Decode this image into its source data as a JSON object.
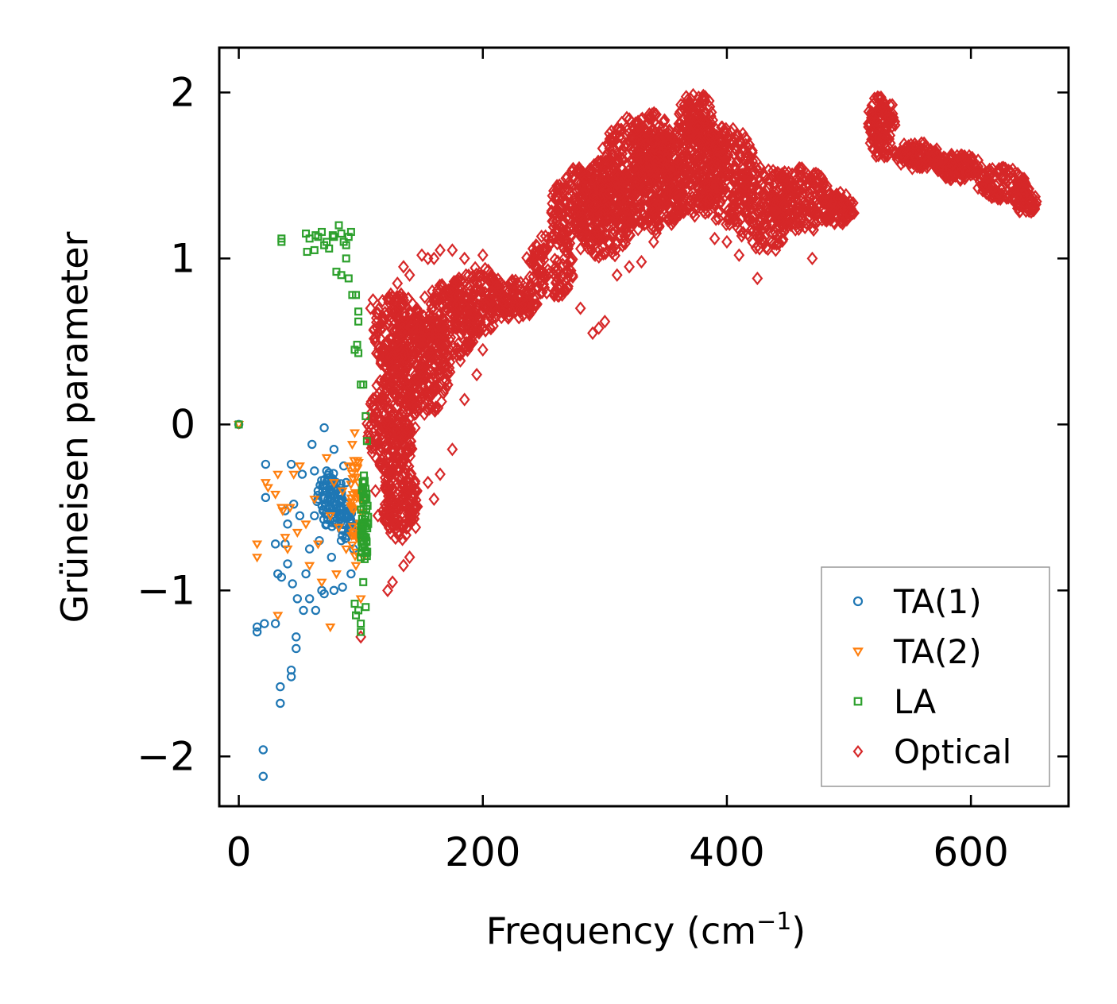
{
  "chart_data": {
    "type": "scatter",
    "title": "",
    "xlabel": "Frequency (cm",
    "xlabel_sup": "−1",
    "xlabel_close": ")",
    "ylabel": "Grüneisen parameter",
    "xlim": [
      -16,
      680
    ],
    "ylim": [
      -2.3,
      2.27
    ],
    "x_ticks": [
      0,
      200,
      400,
      600
    ],
    "x_tick_labels": [
      "0",
      "200",
      "400",
      "600"
    ],
    "y_ticks": [
      -2,
      -1,
      0,
      1,
      2
    ],
    "y_tick_labels": [
      "−2",
      "−1",
      "0",
      "1",
      "2"
    ],
    "grid": false,
    "legend_position": "bottom-right",
    "series": [
      {
        "name": "TA(1)",
        "marker": "circle",
        "color": "#1f77b4",
        "points": [
          [
            0,
            0
          ],
          [
            20,
            -2.12
          ],
          [
            20,
            -1.96
          ],
          [
            30,
            -1.2
          ],
          [
            21,
            -1.2
          ],
          [
            15,
            -1.22
          ],
          [
            15,
            -1.25
          ],
          [
            34,
            -1.58
          ],
          [
            34,
            -1.68
          ],
          [
            43,
            -1.48
          ],
          [
            43,
            -1.52
          ],
          [
            47,
            -1.28
          ],
          [
            47,
            -1.35
          ],
          [
            22,
            -0.24
          ],
          [
            22,
            -0.44
          ],
          [
            30,
            -0.72
          ],
          [
            32,
            -0.9
          ],
          [
            35,
            -0.92
          ],
          [
            40,
            -0.84
          ],
          [
            44,
            -0.96
          ],
          [
            38,
            -0.52
          ],
          [
            40,
            -0.6
          ],
          [
            38,
            -0.72
          ],
          [
            43,
            -0.24
          ],
          [
            45,
            -0.48
          ],
          [
            50,
            -0.55
          ],
          [
            52,
            -0.3
          ],
          [
            55,
            -0.9
          ],
          [
            58,
            -1.05
          ],
          [
            60,
            -0.12
          ],
          [
            62,
            -0.28
          ],
          [
            65,
            -0.4
          ],
          [
            66,
            -0.7
          ],
          [
            68,
            -1.0
          ],
          [
            70,
            -0.02
          ],
          [
            72,
            -0.28
          ],
          [
            75,
            -0.5
          ],
          [
            76,
            -0.8
          ],
          [
            78,
            -0.15
          ],
          [
            80,
            -0.35
          ],
          [
            82,
            -0.55
          ],
          [
            84,
            -0.7
          ],
          [
            86,
            -0.25
          ],
          [
            88,
            -0.48
          ],
          [
            90,
            -0.62
          ],
          [
            92,
            -0.9
          ],
          [
            94,
            -0.75
          ],
          [
            96,
            -0.6
          ],
          [
            48,
            -1.05
          ],
          [
            53,
            -1.12
          ],
          [
            63,
            -1.12
          ],
          [
            70,
            -1.02
          ],
          [
            78,
            -1.0
          ],
          [
            85,
            -0.98
          ],
          [
            58,
            -0.75
          ],
          [
            62,
            -0.55
          ],
          [
            65,
            -0.45
          ],
          [
            72,
            -0.6
          ],
          [
            75,
            -0.4
          ],
          [
            80,
            -0.6
          ],
          [
            84,
            -0.45
          ],
          [
            88,
            -0.35
          ],
          [
            92,
            -0.52
          ]
        ],
        "clusters": [
          [
            75,
            -0.45,
            11,
            0.17,
            70
          ],
          [
            88,
            -0.58,
            5,
            0.12,
            30
          ]
        ]
      },
      {
        "name": "TA(2)",
        "marker": "triangle-down",
        "color": "#ff7f0e",
        "points": [
          [
            0,
            0
          ],
          [
            15,
            -0.72
          ],
          [
            15,
            -0.8
          ],
          [
            22,
            -0.35
          ],
          [
            24,
            -0.38
          ],
          [
            30,
            -0.42
          ],
          [
            32,
            -0.3
          ],
          [
            32,
            -1.15
          ],
          [
            35,
            -0.5
          ],
          [
            36,
            -0.52
          ],
          [
            38,
            -0.68
          ],
          [
            40,
            -0.75
          ],
          [
            42,
            -0.5
          ],
          [
            45,
            -0.3
          ],
          [
            48,
            -0.65
          ],
          [
            50,
            -0.25
          ],
          [
            55,
            -0.6
          ],
          [
            58,
            -0.85
          ],
          [
            62,
            -0.45
          ],
          [
            65,
            -0.72
          ],
          [
            68,
            -0.95
          ],
          [
            72,
            -0.2
          ],
          [
            75,
            -0.55
          ],
          [
            78,
            -0.35
          ],
          [
            80,
            -0.9
          ],
          [
            82,
            -0.62
          ],
          [
            85,
            -0.4
          ],
          [
            88,
            -0.75
          ],
          [
            90,
            -0.25
          ],
          [
            92,
            -0.5
          ],
          [
            94,
            -0.65
          ],
          [
            96,
            -0.85
          ],
          [
            95,
            -0.05
          ],
          [
            93,
            -0.12
          ],
          [
            98,
            -0.35
          ],
          [
            100,
            -0.65
          ],
          [
            102,
            -0.8
          ],
          [
            100,
            -1.05
          ],
          [
            75,
            -1.22
          ]
        ],
        "clusters": [
          [
            96,
            -0.5,
            5,
            0.3,
            40
          ]
        ]
      },
      {
        "name": "LA",
        "marker": "square",
        "color": "#2ca02c",
        "points": [
          [
            0,
            0
          ],
          [
            35,
            1.12
          ],
          [
            35,
            1.1
          ],
          [
            55,
            1.15
          ],
          [
            56,
            1.04
          ],
          [
            58,
            1.12
          ],
          [
            62,
            1.05
          ],
          [
            63,
            1.14
          ],
          [
            65,
            1.13
          ],
          [
            68,
            1.16
          ],
          [
            70,
            1.08
          ],
          [
            72,
            1.1
          ],
          [
            74,
            1.06
          ],
          [
            77,
            1.14
          ],
          [
            78,
            1.13
          ],
          [
            82,
            1.2
          ],
          [
            84,
            1.15
          ],
          [
            86,
            1.1
          ],
          [
            88,
            1.08
          ],
          [
            90,
            1.13
          ],
          [
            92,
            1.16
          ],
          [
            80,
            0.92
          ],
          [
            84,
            0.9
          ],
          [
            88,
            1.0
          ],
          [
            90,
            0.88
          ],
          [
            93,
            0.78
          ],
          [
            96,
            0.78
          ],
          [
            98,
            0.68
          ],
          [
            98,
            0.62
          ],
          [
            95,
            0.45
          ],
          [
            97,
            0.48
          ],
          [
            98,
            0.43
          ],
          [
            100,
            0.24
          ],
          [
            102,
            0.24
          ],
          [
            104,
            0.05
          ],
          [
            105,
            -0.1
          ],
          [
            104,
            -0.55
          ],
          [
            106,
            -0.6
          ],
          [
            100,
            -0.8
          ],
          [
            102,
            -0.95
          ],
          [
            104,
            -1.1
          ],
          [
            98,
            -1.12
          ],
          [
            100,
            -1.25
          ],
          [
            95,
            -1.08
          ],
          [
            96,
            -1.15
          ],
          [
            100,
            -1.2
          ]
        ],
        "clusters": [
          [
            103,
            -0.6,
            3,
            0.3,
            50
          ]
        ]
      },
      {
        "name": "Optical",
        "marker": "diamond",
        "color": "#d62728",
        "points": [
          [
            100,
            -1.28
          ],
          [
            122,
            -1.0
          ],
          [
            126,
            -0.95
          ],
          [
            128,
            -0.6
          ],
          [
            130,
            0.85
          ],
          [
            135,
            0.95
          ],
          [
            140,
            0.9
          ],
          [
            150,
            1.02
          ],
          [
            155,
            1.0
          ],
          [
            160,
            1.0
          ],
          [
            165,
            1.05
          ],
          [
            175,
            1.05
          ],
          [
            185,
            1.0
          ],
          [
            200,
            1.02
          ],
          [
            210,
            0.7
          ],
          [
            220,
            0.7
          ],
          [
            240,
            0.68
          ],
          [
            265,
            0.78
          ],
          [
            280,
            0.7
          ],
          [
            290,
            0.55
          ],
          [
            295,
            0.58
          ],
          [
            300,
            0.62
          ],
          [
            310,
            0.9
          ],
          [
            320,
            0.95
          ],
          [
            330,
            0.98
          ],
          [
            340,
            1.1
          ],
          [
            365,
            1.3
          ],
          [
            390,
            1.12
          ],
          [
            400,
            1.1
          ],
          [
            410,
            1.02
          ],
          [
            425,
            0.88
          ],
          [
            440,
            1.05
          ],
          [
            470,
            1.0
          ],
          [
            200,
            0.45
          ],
          [
            195,
            0.3
          ],
          [
            185,
            0.15
          ],
          [
            175,
            -0.15
          ],
          [
            165,
            -0.3
          ],
          [
            160,
            -0.45
          ],
          [
            155,
            -0.35
          ],
          [
            145,
            -0.62
          ],
          [
            135,
            -0.85
          ],
          [
            140,
            -0.8
          ],
          [
            118,
            -0.2
          ],
          [
            120,
            -0.1
          ],
          [
            114,
            -0.55
          ],
          [
            112,
            -0.4
          ],
          [
            108,
            0.7
          ],
          [
            110,
            0.75
          ]
        ],
        "clusters": [
          [
            130,
            0.55,
            20,
            0.25,
            200
          ],
          [
            125,
            0.0,
            20,
            0.3,
            220
          ],
          [
            132,
            -0.45,
            15,
            0.25,
            160
          ],
          [
            150,
            0.35,
            25,
            0.3,
            220
          ],
          [
            170,
            0.6,
            25,
            0.25,
            180
          ],
          [
            195,
            0.75,
            25,
            0.2,
            150
          ],
          [
            225,
            0.75,
            20,
            0.12,
            110
          ],
          [
            255,
            0.95,
            20,
            0.2,
            110
          ],
          [
            280,
            1.3,
            25,
            0.25,
            200
          ],
          [
            300,
            1.3,
            25,
            0.3,
            220
          ],
          [
            320,
            1.5,
            25,
            0.35,
            260
          ],
          [
            345,
            1.45,
            25,
            0.3,
            220
          ],
          [
            340,
            1.7,
            15,
            0.2,
            100
          ],
          [
            375,
            1.55,
            25,
            0.3,
            240
          ],
          [
            375,
            1.85,
            15,
            0.15,
            100
          ],
          [
            400,
            1.5,
            25,
            0.3,
            220
          ],
          [
            430,
            1.3,
            25,
            0.25,
            180
          ],
          [
            460,
            1.35,
            25,
            0.2,
            180
          ],
          [
            490,
            1.3,
            15,
            0.1,
            90
          ],
          [
            527,
            1.8,
            12,
            0.2,
            120
          ],
          [
            555,
            1.62,
            20,
            0.08,
            110
          ],
          [
            590,
            1.55,
            20,
            0.08,
            110
          ],
          [
            625,
            1.45,
            20,
            0.1,
            110
          ],
          [
            645,
            1.35,
            10,
            0.08,
            60
          ]
        ]
      }
    ]
  }
}
